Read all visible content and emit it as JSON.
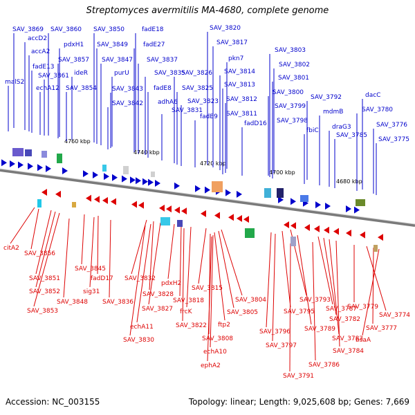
{
  "title": "Streptomyces avermitilis MA-4680, complete genome",
  "footer": {
    "accession": "Accession: NC_003155",
    "summary": "Topology: linear; Length: 9,025,608 bp; Genes: 7,669"
  },
  "colors": {
    "forward_strand": "#0000cc",
    "reverse_strand": "#dd0000",
    "backbone": "#888888"
  },
  "scale_labels": [
    "4760 kbp",
    "4740 kbp",
    "4720 kbp",
    "4700 kbp",
    "4680 kbp"
  ],
  "top_genes": [
    "SAV_3869",
    "accD2",
    "accA2",
    "fadE13",
    "malS2",
    "echA12",
    "SAV_3861",
    "SAV_3860",
    "pdxH1",
    "SAV_3857",
    "ideR",
    "SAV_3854",
    "SAV_3850",
    "SAV_3849",
    "SAV_3847",
    "purU",
    "SAV_3843",
    "SAV_3842",
    "fadE18",
    "fadE27",
    "SAV_3837",
    "SAV_3835",
    "fadE8",
    "adhA6",
    "SAV_3831",
    "SAV_3826",
    "SAV_3825",
    "SAV_3823",
    "fadE9",
    "SAV_3820",
    "SAV_3817",
    "pkn7",
    "SAV_3814",
    "SAV_3813",
    "SAV_3812",
    "SAV_3811",
    "fadD16",
    "SAV_3803",
    "SAV_3802",
    "SAV_3801",
    "SAV_3800",
    "SAV_3799",
    "SAV_3798",
    "SAV_3792",
    "fbiC",
    "mdmB",
    "draG3",
    "SAV_3785",
    "dacC",
    "SAV_3780",
    "SAV_3776",
    "SAV_3775"
  ],
  "bottom_genes": [
    "citA2",
    "SAV_3856",
    "SAV_3851",
    "SAV_3852",
    "SAV_3853",
    "SAV_3845",
    "fadD17",
    "sig31",
    "SAV_3848",
    "SAV_3836",
    "SAV_3832",
    "SAV_3828",
    "SAV_3827",
    "echA11",
    "SAV_3830",
    "pdxH2",
    "SAV_3818",
    "frcK",
    "SAV_3822",
    "SAV_3815",
    "SAV_3804",
    "SAV_3805",
    "ftp2",
    "SAV_3808",
    "echA10",
    "ephA2",
    "SAV_3793",
    "SAV_3795",
    "SAV_3796",
    "SAV_3797",
    "SAV_3789",
    "SAV_3787",
    "SAV_3782",
    "SAV_3783",
    "SAV_3784",
    "SAV_3786",
    "SAV_3791",
    "SAV_3779",
    "SAV_3774",
    "SAV_3777",
    "bsaA"
  ]
}
